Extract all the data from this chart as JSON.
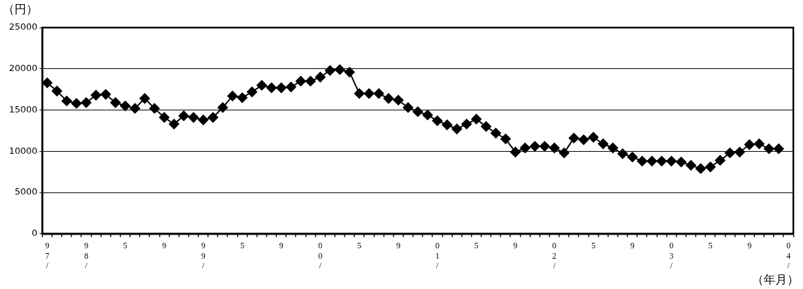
{
  "chart_data": {
    "type": "line",
    "xlabel": "（年月）",
    "ylabel": "（円）",
    "categories": [
      "97/",
      null,
      null,
      null,
      "98/",
      null,
      null,
      null,
      "5",
      null,
      null,
      null,
      "9",
      null,
      null,
      null,
      "99/",
      null,
      null,
      null,
      "5",
      null,
      null,
      null,
      "9",
      null,
      null,
      null,
      "00/",
      null,
      null,
      null,
      "5",
      null,
      null,
      null,
      "9",
      null,
      null,
      null,
      "01/",
      null,
      null,
      null,
      "5",
      null,
      null,
      null,
      "9",
      null,
      null,
      null,
      "02/",
      null,
      null,
      null,
      "5",
      null,
      null,
      null,
      "9",
      null,
      null,
      null,
      "03/",
      null,
      null,
      null,
      "5",
      null,
      null,
      null,
      "9",
      null,
      null,
      null,
      "04/"
    ],
    "series": [
      {
        "color": "#000000",
        "values": [
          18300,
          17300,
          16100,
          15800,
          15900,
          16800,
          16900,
          15900,
          15500,
          15200,
          16400,
          15200,
          14100,
          13300,
          14300,
          14100,
          13800,
          14100,
          15300,
          16700,
          16500,
          17200,
          18000,
          17700,
          17700,
          17800,
          18500,
          18500,
          19000,
          19800,
          19900,
          19600,
          17000,
          17000,
          17000,
          16400,
          16200,
          15300,
          14800,
          14400,
          13700,
          13200,
          12700,
          13300,
          13900,
          13000,
          12200,
          11500,
          9900,
          10400,
          10600,
          10600,
          10400,
          9800,
          11600,
          11400,
          11700,
          10900,
          10400,
          9700,
          9300,
          8800,
          8800,
          8800,
          8800,
          8700,
          8300,
          7900,
          8100,
          8900,
          9800,
          9900,
          10800,
          10900,
          10300,
          10300,
          null
        ]
      }
    ],
    "ylim": [
      0,
      25000
    ],
    "yticks": [
      0,
      5000,
      10000,
      15000,
      20000,
      25000
    ],
    "grid": "y",
    "legend": false,
    "marker": "diamond",
    "line_style": "solid"
  }
}
